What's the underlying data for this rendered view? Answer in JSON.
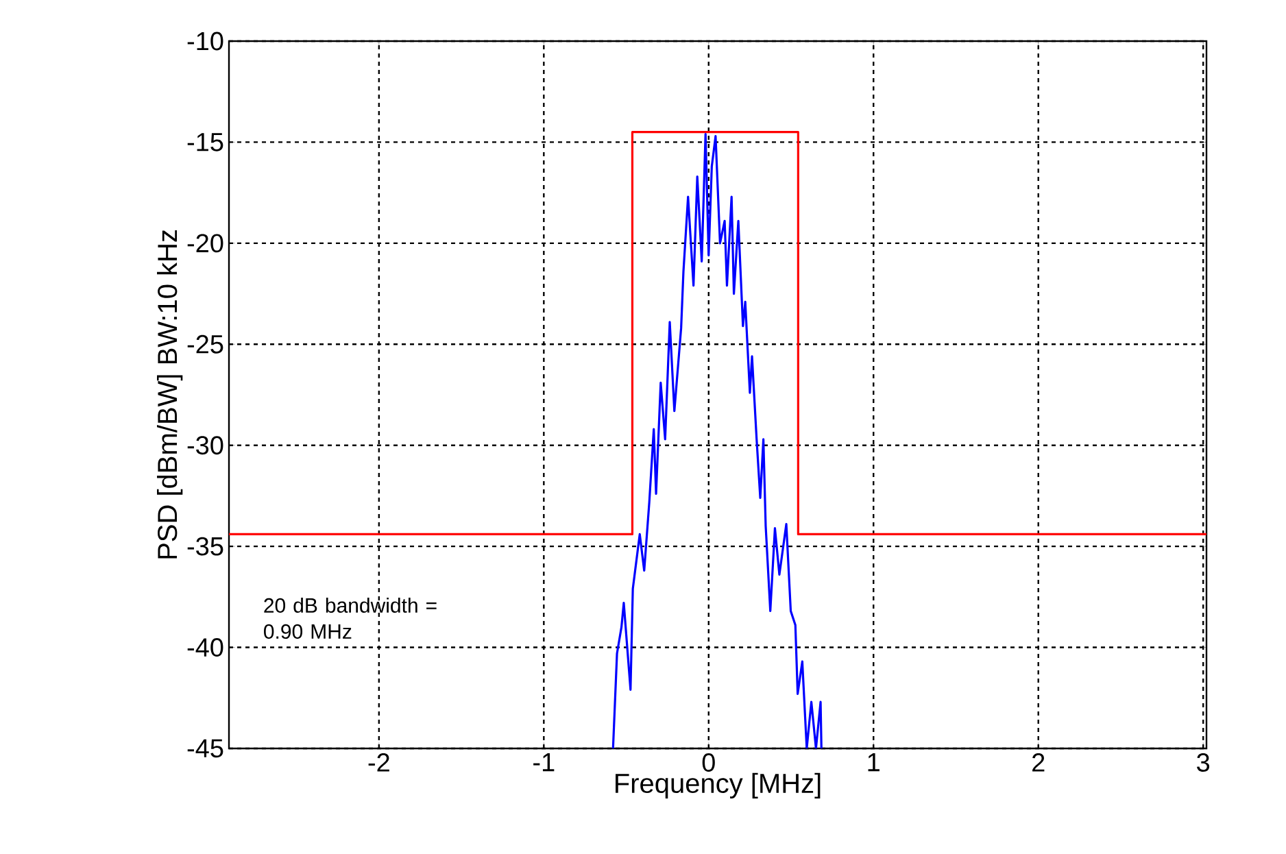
{
  "chart_data": {
    "type": "line",
    "xlabel": "Frequency [MHz]",
    "ylabel": "PSD  [dBm/BW]  BW:10 kHz",
    "xlim": [
      -2.91,
      3.02
    ],
    "ylim": [
      -45,
      -10
    ],
    "xticks": [
      -2,
      -1,
      0,
      1,
      2,
      3
    ],
    "yticks": [
      -45,
      -40,
      -35,
      -30,
      -25,
      -20,
      -15,
      -10
    ],
    "grid": true,
    "line_style": "solid",
    "marker": "none",
    "annotations": [
      "20 dB bandwidth = 0.90 MHz"
    ],
    "series": [
      {
        "color": "#ff0000",
        "x": [
          -2.91,
          -0.463,
          -0.463,
          0.543,
          0.543,
          3.02
        ],
        "values": [
          -34.4,
          -34.4,
          -14.5,
          -14.5,
          -34.4,
          -34.4
        ]
      },
      {
        "color": "#0000ff",
        "x": [
          -0.58,
          -0.556,
          -0.529,
          -0.515,
          -0.474,
          -0.46,
          -0.418,
          -0.391,
          -0.36,
          -0.333,
          -0.319,
          -0.291,
          -0.264,
          -0.236,
          -0.208,
          -0.167,
          -0.153,
          -0.125,
          -0.092,
          -0.069,
          -0.042,
          -0.019,
          0,
          0.019,
          0.042,
          0.069,
          0.097,
          0.111,
          0.139,
          0.153,
          0.18,
          0.208,
          0.222,
          0.25,
          0.263,
          0.291,
          0.313,
          0.332,
          0.346,
          0.374,
          0.402,
          0.429,
          0.471,
          0.498,
          0.526,
          0.54,
          0.568,
          0.595,
          0.623,
          0.651,
          0.679,
          0.684
        ],
        "values": [
          -45,
          -40.3,
          -39.0,
          -37.8,
          -42.1,
          -37.1,
          -34.4,
          -36.2,
          -32.8,
          -29.2,
          -32.4,
          -26.9,
          -29.7,
          -23.9,
          -28.3,
          -24.2,
          -21.4,
          -17.7,
          -22.1,
          -16.7,
          -20.9,
          -14.6,
          -20.6,
          -16.2,
          -14.7,
          -20.0,
          -18.9,
          -22.1,
          -17.7,
          -22.5,
          -18.9,
          -24.1,
          -22.9,
          -27.4,
          -25.6,
          -29.7,
          -32.6,
          -29.7,
          -34.0,
          -38.2,
          -34.1,
          -36.4,
          -33.9,
          -38.2,
          -38.9,
          -42.3,
          -40.7,
          -45,
          -42.7,
          -45,
          -42.7,
          -45
        ]
      }
    ]
  }
}
